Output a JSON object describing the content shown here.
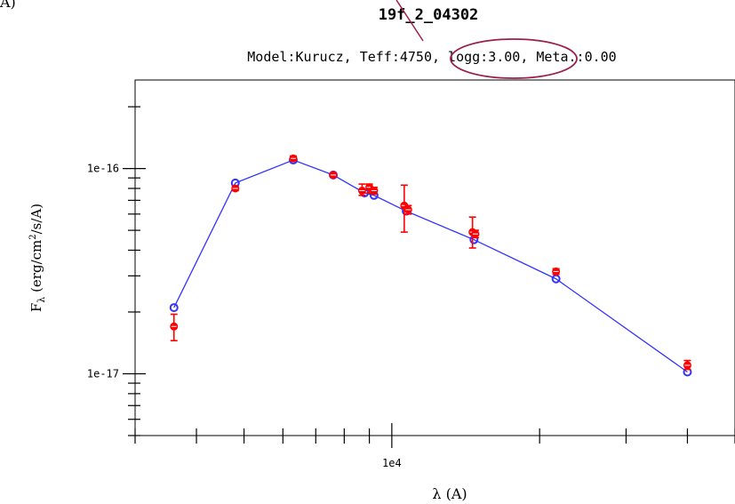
{
  "corner_label": "A)",
  "chart_data": {
    "type": "scatter",
    "title": "19f_2_04302",
    "subtitle": "Model:Kurucz, Teff:4750, logg:3.00, Meta.:0.00",
    "xlabel": "λ (A)",
    "ylabel": "Fλ (erg/cm²/s/A)",
    "xscale": "log",
    "yscale": "log",
    "xlim": [
      3000,
      50000
    ],
    "ylim": [
      5e-18,
      2.7e-16
    ],
    "x_ticks": [
      {
        "value": 10000,
        "label": "1e4"
      }
    ],
    "y_ticks": [
      {
        "value": 1e-16,
        "label": "1e-16"
      },
      {
        "value": 1e-17,
        "label": "1e-17"
      }
    ],
    "grid": false,
    "series": [
      {
        "role": "model",
        "color": "#3333ff",
        "style": "line-with-open-circles",
        "x": [
          3600,
          4800,
          6300,
          7600,
          8800,
          9200,
          10700,
          14700,
          21600,
          40000
        ],
        "y": [
          2.1e-17,
          8.5e-17,
          1.1e-16,
          9.3e-17,
          7.6e-17,
          7.4e-17,
          6.2e-17,
          4.5e-17,
          2.9e-17,
          1.02e-17
        ]
      },
      {
        "role": "observed",
        "color": "#ff0000",
        "style": "points-with-errorbars",
        "x": [
          3600,
          4800,
          6300,
          7600,
          8700,
          9000,
          9200,
          10600,
          10800,
          14600,
          14800,
          21600,
          40000
        ],
        "y": [
          1.7e-17,
          8e-17,
          1.12e-16,
          9.3e-17,
          7.8e-17,
          8.1e-17,
          7.8e-17,
          6.6e-17,
          6.3e-17,
          4.9e-17,
          4.8e-17,
          3.15e-17,
          1.1e-17
        ],
        "y_err_low": [
          1.45e-17,
          7.8e-17,
          1.09e-16,
          9.1e-17,
          7.4e-17,
          7.6e-17,
          7.5e-17,
          4.9e-17,
          6e-17,
          4.1e-17,
          4.6e-17,
          3.05e-17,
          1.05e-17
        ],
        "y_err_high": [
          1.95e-17,
          8.2e-17,
          1.15e-16,
          9.5e-17,
          8.4e-17,
          8.4e-17,
          8.1e-17,
          8.3e-17,
          6.6e-17,
          5.8e-17,
          5e-17,
          3.25e-17,
          1.16e-17
        ]
      }
    ],
    "annotation": {
      "highlight": "logg:3.00",
      "shape": "ellipse",
      "color": "#9c2046"
    }
  }
}
